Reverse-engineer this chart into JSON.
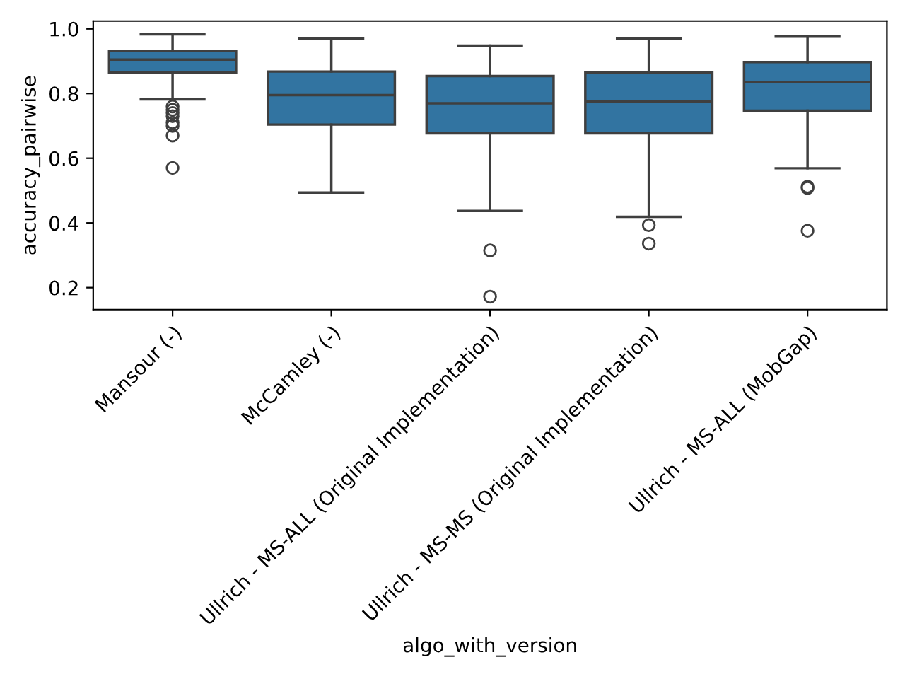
{
  "chart_data": {
    "type": "box",
    "xlabel": "algo_with_version",
    "ylabel": "accuracy_pairwise",
    "categories": [
      "Mansour (-)",
      "McCamley (-)",
      "Ullrich - MS-ALL (Original Implementation)",
      "Ullrich - MS-MS (Original Implementation)",
      "Ullrich - MS-ALL (MobGap)"
    ],
    "color": "#3274a1",
    "boxes": [
      {
        "low": 0.782,
        "q1": 0.865,
        "median": 0.905,
        "q3": 0.931,
        "high": 0.983,
        "outliers": [
          0.76,
          0.75,
          0.74,
          0.73,
          0.71,
          0.7,
          0.67,
          0.57
        ]
      },
      {
        "low": 0.494,
        "q1": 0.704,
        "median": 0.795,
        "q3": 0.868,
        "high": 0.97
      },
      {
        "low": 0.437,
        "q1": 0.677,
        "median": 0.77,
        "q3": 0.854,
        "high": 0.948,
        "outliers": [
          0.315,
          0.172
        ]
      },
      {
        "low": 0.419,
        "q1": 0.677,
        "median": 0.775,
        "q3": 0.865,
        "high": 0.97,
        "outliers": [
          0.393,
          0.336
        ]
      },
      {
        "low": 0.569,
        "q1": 0.747,
        "median": 0.835,
        "q3": 0.897,
        "high": 0.976,
        "outliers": [
          0.512,
          0.508,
          0.376
        ]
      }
    ],
    "ylim": [
      0.132,
      1.024
    ],
    "yticks": [
      0.2,
      0.4,
      0.6,
      0.8,
      {
        "value": 1.0,
        "label": "1.0"
      }
    ],
    "grid": false,
    "legend": false
  }
}
